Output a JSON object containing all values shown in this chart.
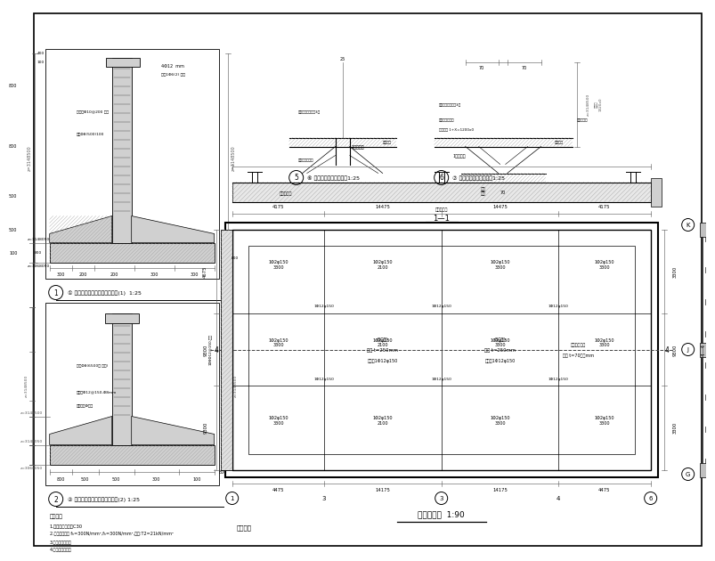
{
  "bg_color": "#ffffff",
  "line_color": "#000000",
  "detail1_label": "① 池壁与底板转角竖向配筋大样(1)  1:25",
  "detail2_label": "② 池壁与底板转角底面配筋大样(2) 1:25",
  "detail5_label": "⑥ 底板与厅板转角大样图1:25",
  "detail6_label": "⑦ 底板与厅板转角大样图1:25",
  "plan_label": "基础平面图  1:90",
  "section11_label": "1—1",
  "notes_label": "说明：：",
  "note1": "1.混凝土强度等级C30",
  "note2": "2.针尾键入长度 fₕ=300N/mm²,fₕ=300N/mm²,小层:T2=21kN/mm²",
  "note3": "3.保护层大小分区",
  "note4": "4.混凝土等级要求",
  "section44": "4—4"
}
